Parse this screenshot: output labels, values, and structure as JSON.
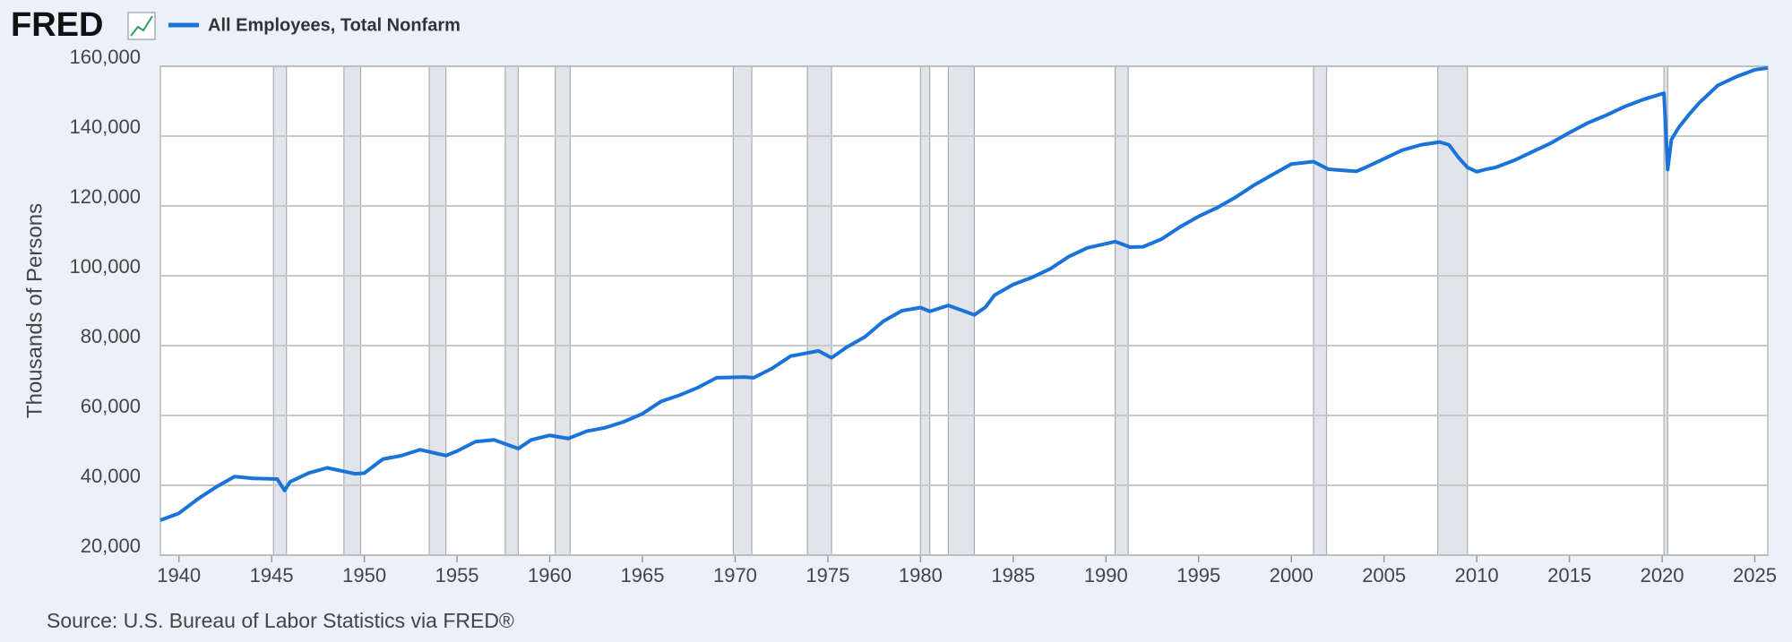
{
  "chart_data": {
    "type": "line",
    "brand": "FRED",
    "source": "Source: U.S. Bureau of Labor Statistics via FRED®",
    "y_label": "Thousands of Persons",
    "x": [
      1939.0,
      1940,
      1941,
      1942,
      1943,
      1944,
      1945.3,
      1945.7,
      1946,
      1947,
      1948,
      1949.5,
      1950,
      1951,
      1952,
      1953,
      1954.4,
      1955,
      1956,
      1957,
      1958.3,
      1959,
      1960,
      1961,
      1962,
      1963,
      1964,
      1965,
      1966,
      1967,
      1968,
      1969,
      1970.5,
      1971,
      1972,
      1973,
      1974.5,
      1975.2,
      1976,
      1977,
      1978,
      1979,
      1980.0,
      1980.5,
      1981.5,
      1982.9,
      1983.5,
      1984,
      1985,
      1986,
      1987,
      1988,
      1989,
      1990.5,
      1991.3,
      1992,
      1993,
      1994,
      1995,
      1996,
      1997,
      1998,
      1999,
      2000,
      2001.2,
      2002,
      2003.5,
      2004,
      2005,
      2006,
      2007,
      2008.0,
      2008.5,
      2009,
      2009.5,
      2010,
      2010.5,
      2011,
      2012,
      2013,
      2014,
      2015,
      2016,
      2017,
      2018,
      2019,
      2020.1,
      2020.3,
      2020.5,
      2020.9,
      2021.5,
      2022,
      2023,
      2024,
      2025,
      2025.7
    ],
    "series": [
      {
        "name": "All Employees, Total Nonfarm",
        "color": "#1a73d9",
        "values": [
          30000,
          32000,
          36000,
          39500,
          42500,
          42000,
          41800,
          38500,
          41000,
          43500,
          45000,
          43300,
          43500,
          47500,
          48500,
          50200,
          48500,
          49800,
          52500,
          53000,
          50500,
          53000,
          54300,
          53400,
          55500,
          56500,
          58200,
          60500,
          64000,
          65800,
          68000,
          70800,
          71000,
          70800,
          73500,
          77000,
          78500,
          76500,
          79500,
          82500,
          87000,
          90000,
          90900,
          89800,
          91500,
          88800,
          91000,
          94500,
          97500,
          99500,
          102000,
          105500,
          108000,
          109800,
          108200,
          108300,
          110500,
          114000,
          117000,
          119500,
          122500,
          126000,
          129000,
          132000,
          132700,
          130500,
          129900,
          131000,
          133500,
          136000,
          137500,
          138300,
          137500,
          134000,
          131000,
          129800,
          130500,
          131000,
          133000,
          135500,
          138000,
          141000,
          143800,
          146000,
          148500,
          150500,
          152300,
          130400,
          139000,
          142500,
          146500,
          149500,
          154500,
          157000,
          159000,
          159500
        ]
      }
    ],
    "recessions": [
      [
        1945.1,
        1945.8
      ],
      [
        1948.9,
        1949.8
      ],
      [
        1953.5,
        1954.4
      ],
      [
        1957.6,
        1958.3
      ],
      [
        1960.3,
        1961.1
      ],
      [
        1969.9,
        1970.9
      ],
      [
        1973.9,
        1975.2
      ],
      [
        1980.0,
        1980.5
      ],
      [
        1981.5,
        1982.9
      ],
      [
        1990.5,
        1991.2
      ],
      [
        2001.2,
        2001.9
      ],
      [
        2007.9,
        2009.5
      ],
      [
        2020.1,
        2020.3
      ]
    ],
    "xlim": [
      1939.0,
      2025.7
    ],
    "xticks": [
      1940,
      1945,
      1950,
      1955,
      1960,
      1965,
      1970,
      1975,
      1980,
      1985,
      1990,
      1995,
      2000,
      2005,
      2010,
      2015,
      2020,
      2025
    ],
    "ylim": [
      20000,
      160000
    ],
    "yticks": [
      {
        "value": 20000,
        "label": "20,000"
      },
      {
        "value": 40000,
        "label": "40,000"
      },
      {
        "value": 60000,
        "label": "60,000"
      },
      {
        "value": 80000,
        "label": "80,000"
      },
      {
        "value": 100000,
        "label": "100,000"
      },
      {
        "value": 120000,
        "label": "120,000"
      },
      {
        "value": 140000,
        "label": "140,000"
      },
      {
        "value": 160000,
        "label": "160,000"
      }
    ],
    "grid": true
  }
}
